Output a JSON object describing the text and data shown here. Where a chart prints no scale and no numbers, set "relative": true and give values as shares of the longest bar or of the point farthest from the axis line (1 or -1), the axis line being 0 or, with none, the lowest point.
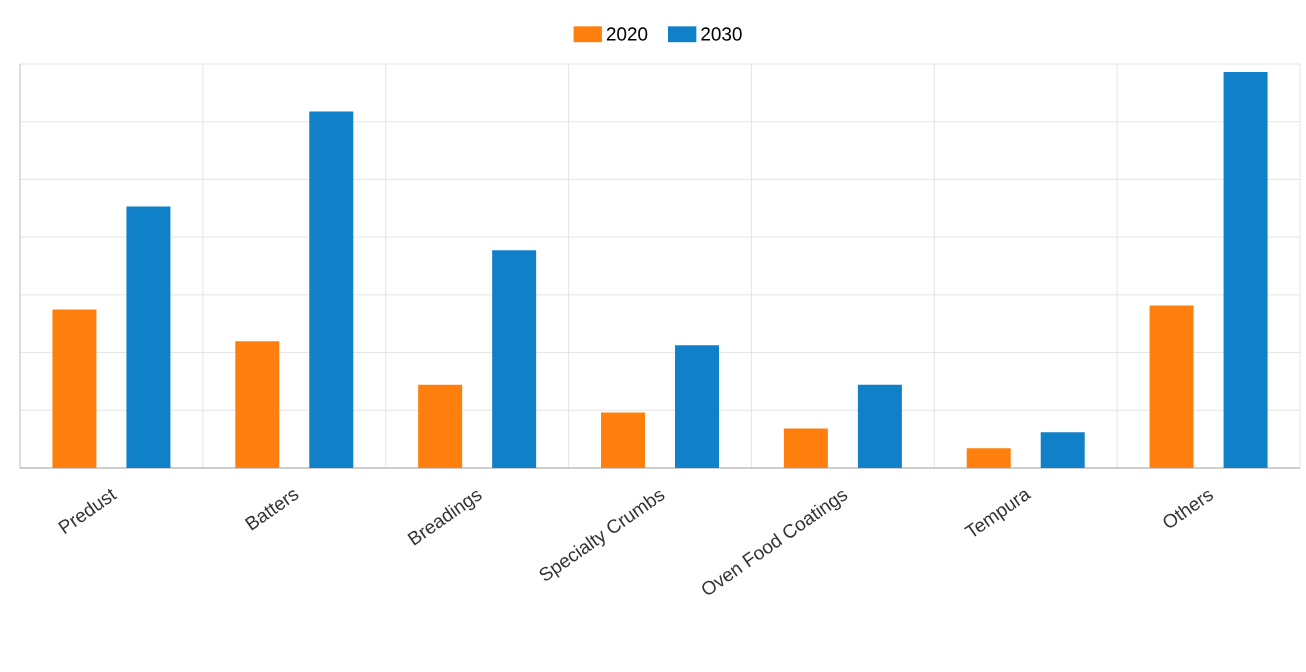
{
  "chart_data": {
    "type": "bar",
    "relative": true,
    "grid": true,
    "legend": "top",
    "categories": [
      "Predust",
      "Batters",
      "Breadings",
      "Specialty Crumbs",
      "Oven Food Coatings",
      "Tempura",
      "Others"
    ],
    "series": [
      {
        "name": "2020",
        "color": "#ff7f0e",
        "values": [
          0.4,
          0.32,
          0.21,
          0.14,
          0.1,
          0.05,
          0.41
        ]
      },
      {
        "name": "2030",
        "color": "#1080c8",
        "values": [
          0.66,
          0.9,
          0.55,
          0.31,
          0.21,
          0.09,
          1.0
        ]
      }
    ]
  }
}
